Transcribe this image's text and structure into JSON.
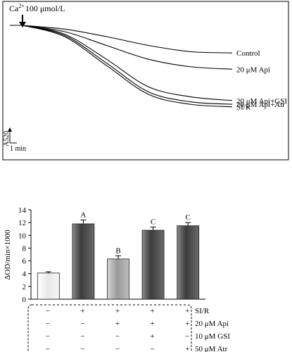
{
  "chart_data": [
    {
      "type": "line",
      "annotation": {
        "prefix": "Ca",
        "superscript": "2+",
        "suffix": "100 μmol/L"
      },
      "ylabel": "A520",
      "scale_label": "1 min",
      "series": [
        {
          "name": "Control",
          "values": [
            1.0,
            0.97,
            0.91,
            0.84,
            0.79,
            0.78
          ]
        },
        {
          "name": "20 μM Api",
          "values": [
            1.0,
            0.95,
            0.84,
            0.73,
            0.67,
            0.65
          ]
        },
        {
          "name": "20 μM Api+GSI",
          "values": [
            1.0,
            0.93,
            0.73,
            0.51,
            0.43,
            0.4
          ]
        },
        {
          "name": "20 μM Api+Atr",
          "values": [
            1.0,
            0.92,
            0.7,
            0.47,
            0.39,
            0.37
          ]
        },
        {
          "name": "SI/R",
          "values": [
            1.0,
            0.91,
            0.68,
            0.45,
            0.37,
            0.35
          ]
        }
      ]
    },
    {
      "type": "bar",
      "ylabel": "ΔOD/min×1000",
      "ylim": [
        0,
        14
      ],
      "yticks": [
        "0",
        "2",
        "4",
        "6",
        "8",
        "10",
        "12",
        "14"
      ],
      "grid": false,
      "values": [
        4.1,
        11.8,
        6.3,
        10.8,
        11.5
      ],
      "errors": [
        0.2,
        0.6,
        0.5,
        0.5,
        0.5
      ],
      "letters": [
        "",
        "A",
        "B",
        "C",
        "C"
      ],
      "bar_colors": [
        "#f2f2f2",
        "#555555",
        "#aaaaaa",
        "#555555",
        "#555555"
      ],
      "treatments": [
        {
          "label": "SI/R",
          "signs": [
            "−",
            "+",
            "+",
            "+",
            "+"
          ]
        },
        {
          "label": "20 μM Api",
          "signs": [
            "−",
            "−",
            "+",
            "+",
            "+"
          ]
        },
        {
          "label": "10 μM GSI",
          "signs": [
            "−",
            "−",
            "−",
            "+",
            "−"
          ]
        },
        {
          "label": "50 μM Atr",
          "signs": [
            "−",
            "−",
            "−",
            "−",
            "+"
          ]
        }
      ]
    }
  ]
}
